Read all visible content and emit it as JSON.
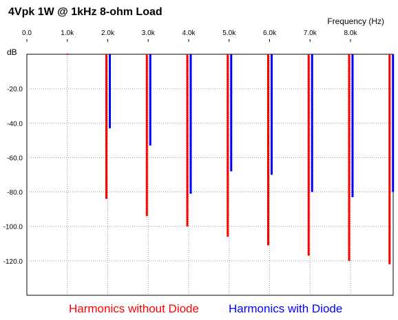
{
  "chart_data": {
    "type": "bar",
    "title": "4Vpk 1W @ 1kHz 8-ohm Load",
    "xlabel": "Frequency  (Hz)",
    "ylabel": "dB",
    "x_ticks": [
      "0.0",
      "1.0k",
      "2.0k",
      "3.0k",
      "4.0k",
      "5.0k",
      "6.0k",
      "7.0k",
      "8.0k"
    ],
    "y_ticks": [
      "-20.0",
      "-40.0",
      "-60.0",
      "-80.0",
      "-100.0",
      "-120.0"
    ],
    "xlim": [
      0,
      9000
    ],
    "ylim": [
      -140,
      0
    ],
    "grid": true,
    "legend_position": "bottom",
    "x": [
      1000,
      2000,
      3000,
      4000,
      5000,
      6000,
      7000,
      8000,
      9000
    ],
    "series": [
      {
        "name": "Harmonics without Diode",
        "color": "#ff0000",
        "values": [
          0,
          -84,
          -94,
          -100,
          -106,
          -111,
          -117,
          -120,
          -122
        ]
      },
      {
        "name": "Harmonics with Diode",
        "color": "#0000ff",
        "values": [
          null,
          -43,
          -53,
          -81,
          -68,
          -70,
          -80,
          -83,
          -80
        ]
      }
    ]
  }
}
